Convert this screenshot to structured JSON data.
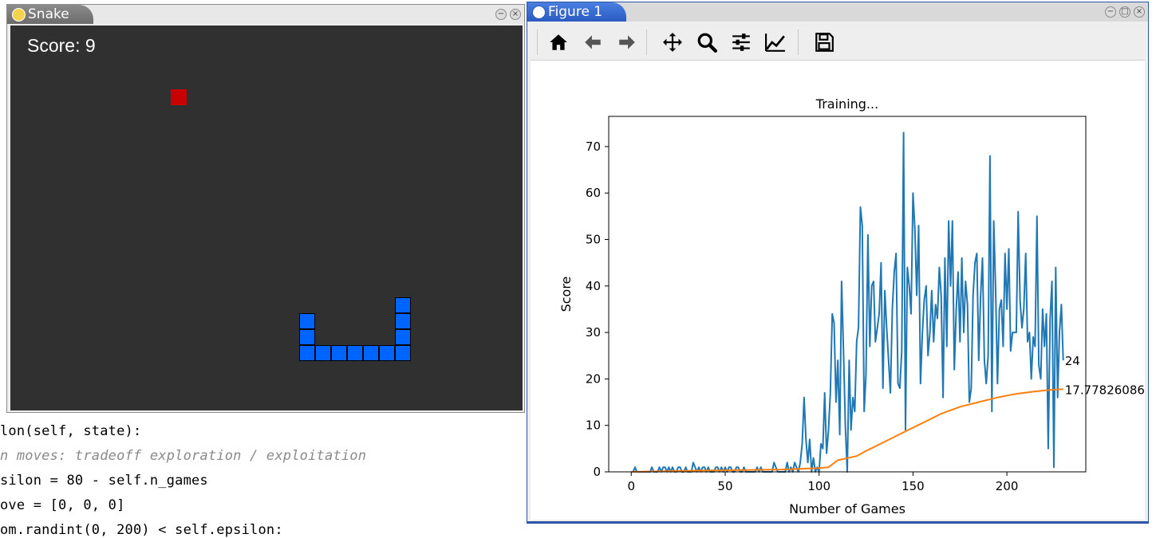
{
  "code_lines": [
    {
      "text": "lon(self, state):"
    },
    {
      "text": "n moves: tradeoff exploration / exploitation",
      "comment": true
    },
    {
      "text": "silon = 80 - self.n_games"
    },
    {
      "text": "ove = [0, 0, 0]"
    },
    {
      "text": "om.randint(0, 200) < self.epsilon:"
    }
  ],
  "snake_window": {
    "title": "Snake",
    "score_label": "Score: 9",
    "food_color": "#c80000",
    "snake_color": "#0064ff",
    "background": "#303030"
  },
  "figure_window": {
    "title": "Figure 1",
    "toolbar": {
      "home": "home-icon",
      "back": "back-arrow-icon",
      "forward": "forward-arrow-icon",
      "pan": "pan-icon",
      "zoom": "zoom-icon",
      "configure": "configure-subplots-icon",
      "edit": "edit-axis-icon",
      "save": "save-icon"
    }
  },
  "chart_data": {
    "type": "line",
    "title": "Training...",
    "xlabel": "Number of Games",
    "ylabel": "Score",
    "xlim": [
      -12,
      242
    ],
    "ylim": [
      0,
      76.5
    ],
    "xticks": [
      0,
      50,
      100,
      150,
      200
    ],
    "yticks": [
      0,
      10,
      20,
      30,
      40,
      50,
      60,
      70
    ],
    "grid": false,
    "series": [
      {
        "color": "#1f77b4",
        "x_start": 0,
        "values": [
          0,
          0,
          1,
          0,
          0,
          0,
          0,
          0,
          0,
          0,
          0,
          1,
          0,
          0,
          0,
          1,
          0,
          1,
          1,
          0,
          1,
          0,
          1,
          0,
          0,
          1,
          1,
          0,
          0,
          1,
          0,
          0,
          0,
          2,
          1,
          0,
          1,
          0,
          1,
          1,
          0,
          1,
          0,
          0,
          0,
          1,
          1,
          0,
          1,
          0,
          1,
          0,
          1,
          1,
          0,
          0,
          1,
          1,
          0,
          0,
          1,
          0,
          0,
          0,
          0,
          0,
          0,
          1,
          0,
          1,
          0,
          0,
          0,
          0,
          0,
          0,
          2,
          1,
          0,
          0,
          0,
          0,
          0,
          2,
          0,
          1,
          0,
          2,
          1,
          0,
          2,
          6,
          16,
          7,
          2,
          7,
          0,
          3,
          0,
          1,
          0,
          6,
          5,
          17,
          4,
          9,
          17,
          34,
          32,
          15,
          24,
          8,
          41,
          26,
          10,
          0,
          24,
          9,
          16,
          13,
          28,
          31,
          57,
          53,
          13,
          21,
          51,
          27,
          40,
          41,
          28,
          31,
          34,
          45,
          18,
          39,
          31,
          24,
          17,
          35,
          43,
          47,
          19,
          18,
          26,
          73,
          9,
          44,
          40,
          34,
          60,
          52,
          38,
          53,
          19,
          30,
          37,
          40,
          25,
          30,
          39,
          28,
          36,
          33,
          44,
          38,
          16,
          46,
          27,
          54,
          40,
          54,
          22,
          35,
          43,
          28,
          46,
          30,
          41,
          36,
          15,
          18,
          38,
          45,
          47,
          24,
          38,
          46,
          24,
          19,
          25,
          68,
          13,
          54,
          39,
          19,
          35,
          37,
          27,
          47,
          35,
          48,
          26,
          30,
          30,
          30,
          56,
          37,
          31,
          35,
          47,
          28,
          30,
          20,
          29,
          27,
          55,
          23,
          20,
          35,
          27,
          34,
          5,
          33,
          41,
          1,
          44,
          16,
          30,
          36,
          24
        ],
        "end_label": "24"
      },
      {
        "color": "#ff7f0e",
        "end_label": "17.77826086",
        "points": [
          [
            0,
            0
          ],
          [
            40,
            0.3
          ],
          [
            80,
            0.5
          ],
          [
            100,
            0.8
          ],
          [
            105,
            1.0
          ],
          [
            110,
            2.5
          ],
          [
            120,
            3.4
          ],
          [
            125,
            4.5
          ],
          [
            135,
            6.5
          ],
          [
            145,
            8.5
          ],
          [
            155,
            10.5
          ],
          [
            165,
            12.5
          ],
          [
            175,
            14.0
          ],
          [
            185,
            15.0
          ],
          [
            195,
            16.0
          ],
          [
            205,
            16.8
          ],
          [
            215,
            17.3
          ],
          [
            222,
            17.6
          ],
          [
            230,
            17.78
          ]
        ]
      }
    ]
  }
}
